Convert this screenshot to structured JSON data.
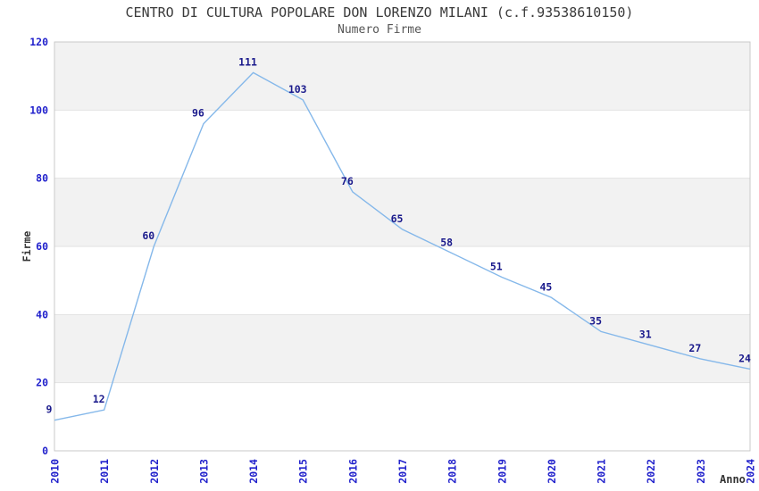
{
  "chart_data": {
    "type": "line",
    "title": "CENTRO DI CULTURA POPOLARE DON LORENZO MILANI (c.f.93538610150)",
    "subtitle": "Numero Firme",
    "xlabel": "Anno",
    "ylabel": "Firme",
    "x": [
      2010,
      2011,
      2012,
      2013,
      2014,
      2015,
      2016,
      2017,
      2018,
      2019,
      2020,
      2021,
      2022,
      2023,
      2024
    ],
    "values": [
      9,
      12,
      60,
      96,
      111,
      103,
      76,
      65,
      58,
      51,
      45,
      35,
      31,
      27,
      24
    ],
    "ylim": [
      0,
      120
    ],
    "ytick_step": 20,
    "yticks": [
      0,
      20,
      40,
      60,
      80,
      100,
      120
    ],
    "grid": "alternating-horizontal-bands",
    "legend": "none",
    "colors": {
      "line": "#85b8ea",
      "data_label": "#1a1a8c",
      "tick_label": "#2222cc",
      "band_gray": "#f2f2f2",
      "band_white": "#ffffff",
      "grid_line": "#e2e2e2",
      "plot_border": "#c9c9c9",
      "title_text": "#3a3a3a",
      "subtitle_text": "#555555",
      "axis_label_text": "#333333"
    }
  }
}
